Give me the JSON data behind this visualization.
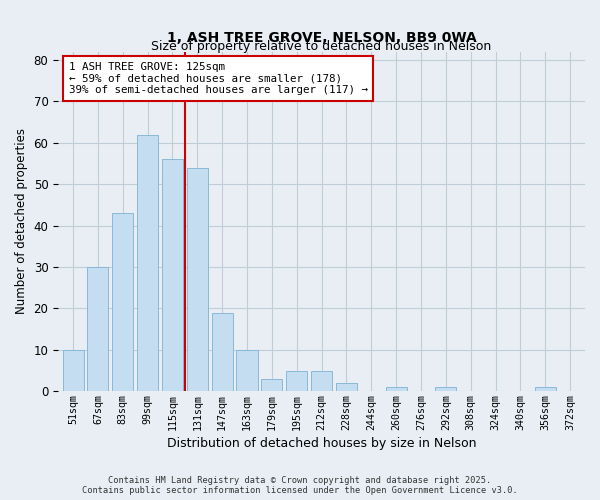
{
  "title": "1, ASH TREE GROVE, NELSON, BB9 0WA",
  "subtitle": "Size of property relative to detached houses in Nelson",
  "xlabel": "Distribution of detached houses by size in Nelson",
  "ylabel": "Number of detached properties",
  "bar_labels": [
    "51sqm",
    "67sqm",
    "83sqm",
    "99sqm",
    "115sqm",
    "131sqm",
    "147sqm",
    "163sqm",
    "179sqm",
    "195sqm",
    "212sqm",
    "228sqm",
    "244sqm",
    "260sqm",
    "276sqm",
    "292sqm",
    "308sqm",
    "324sqm",
    "340sqm",
    "356sqm",
    "372sqm"
  ],
  "bar_values": [
    10,
    30,
    43,
    62,
    56,
    54,
    19,
    10,
    3,
    5,
    5,
    2,
    0,
    1,
    0,
    1,
    0,
    0,
    0,
    1,
    0
  ],
  "bar_color": "#c5ddf0",
  "bar_edge_color": "#8ab8d8",
  "vline_x_index": 4.5,
  "vline_color": "#cc0000",
  "ylim": [
    0,
    82
  ],
  "yticks": [
    0,
    10,
    20,
    30,
    40,
    50,
    60,
    70,
    80
  ],
  "annotation_text": "1 ASH TREE GROVE: 125sqm\n← 59% of detached houses are smaller (178)\n39% of semi-detached houses are larger (117) →",
  "annotation_box_edgecolor": "#cc0000",
  "footnote1": "Contains HM Land Registry data © Crown copyright and database right 2025.",
  "footnote2": "Contains public sector information licensed under the Open Government Licence v3.0.",
  "bg_color": "#e8eef4",
  "plot_bg_color": "#e8eef4",
  "grid_color": "#c0ccd8"
}
